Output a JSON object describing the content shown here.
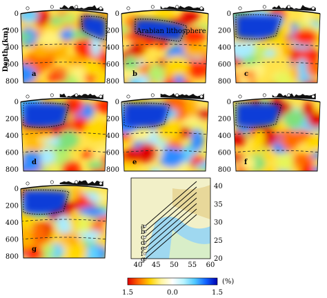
{
  "figure": {
    "y_axis_label": "Depth (km)",
    "depth_ticks": [
      "0",
      "200",
      "400",
      "600",
      "800"
    ],
    "slab_label": "Arabian lithosphere",
    "panels": [
      {
        "id": "a",
        "label": "a"
      },
      {
        "id": "b",
        "label": "b"
      },
      {
        "id": "c",
        "label": "c"
      },
      {
        "id": "d",
        "label": "d"
      },
      {
        "id": "e",
        "label": "e"
      },
      {
        "id": "f",
        "label": "f"
      },
      {
        "id": "g",
        "label": "g"
      }
    ],
    "map": {
      "lon_ticks": [
        "40",
        "45",
        "50",
        "55",
        "60"
      ],
      "lat_ticks": [
        "20",
        "25",
        "30",
        "35",
        "40"
      ],
      "profile_labels": [
        "a",
        "b",
        "c",
        "d",
        "e",
        "f",
        "g"
      ]
    },
    "colorbar": {
      "tick_left": "1.5",
      "tick_mid": "0.0",
      "tick_right": "1.5",
      "unit": "(%)",
      "colors": [
        "#e00000",
        "#ff6a00",
        "#ffd200",
        "#fff5a0",
        "#ffffff",
        "#b8f4ff",
        "#4fc8ff",
        "#1060ff",
        "#0000b0"
      ]
    }
  }
}
